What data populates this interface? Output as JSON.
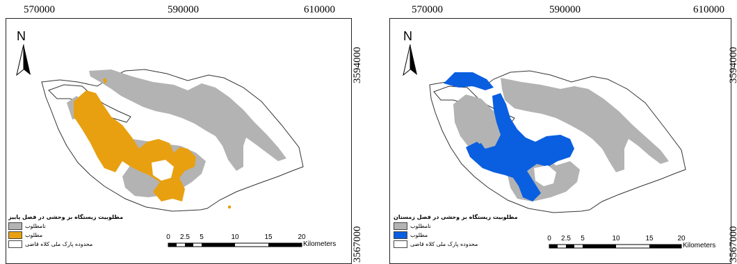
{
  "coordinates": {
    "x_ticks": [
      "570000",
      "590000",
      "610000"
    ],
    "y_ticks": [
      "3594000",
      "3567000"
    ]
  },
  "north_label": "N",
  "scale_bar": {
    "labels": [
      "0",
      "2.5",
      "5",
      "10",
      "15",
      "20"
    ],
    "unit": "Kilometers"
  },
  "maps": [
    {
      "id": "autumn",
      "legend_title": "مطلوبیت زیستگاه بز وحشی در فصل پاییز",
      "legend_items": [
        {
          "label": "نامطلوب",
          "color": "#b3b3b3"
        },
        {
          "label": "مطلوب",
          "color": "#e8a010"
        },
        {
          "label": "محدوده پارک ملی کلاه قاضی",
          "color": "#ffffff"
        }
      ]
    },
    {
      "id": "winter",
      "legend_title": "مطلوبیت زیستگاه بز وحشی در فصل زمستان",
      "legend_items": [
        {
          "label": "نامطلوب",
          "color": "#b3b3b3"
        },
        {
          "label": "مطلوب",
          "color": "#0a5fe0"
        },
        {
          "label": "محدوده پارک ملی کلاه قاضی",
          "color": "#ffffff"
        }
      ]
    }
  ]
}
